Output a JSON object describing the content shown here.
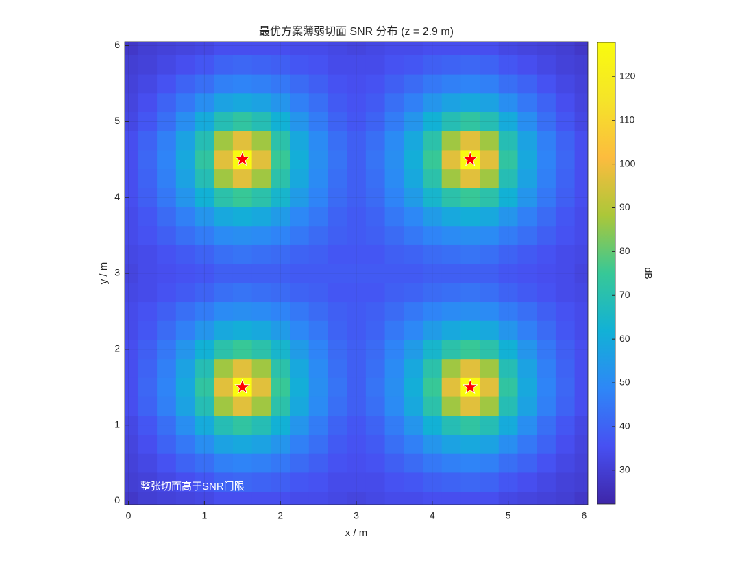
{
  "chart_data": {
    "type": "heatmap",
    "title": "最优方案薄弱切面 SNR 分布  (z = 2.9 m)",
    "x_label": "x / m",
    "y_label": "y / m",
    "colorbar_label": "dB",
    "annotation": "整张切面高于SNR门限",
    "colormap": "parula",
    "grid": true,
    "x": [
      0,
      0.25,
      0.5,
      0.75,
      1,
      1.25,
      1.5,
      1.75,
      2,
      2.25,
      2.5,
      2.75,
      3,
      3.25,
      3.5,
      3.75,
      4,
      4.25,
      4.5,
      4.75,
      5,
      5.25,
      5.5,
      5.75,
      6
    ],
    "y": [
      0,
      0.25,
      0.5,
      0.75,
      1,
      1.25,
      1.5,
      1.75,
      2,
      2.25,
      2.5,
      2.75,
      3,
      3.25,
      3.5,
      3.75,
      4,
      4.25,
      4.5,
      4.75,
      5,
      5.25,
      5.5,
      5.75,
      6
    ],
    "z": [
      [
        28,
        30,
        31,
        32,
        33,
        35,
        35,
        35,
        35,
        34,
        34,
        33,
        32,
        33,
        34,
        34,
        35,
        35,
        35,
        35,
        33,
        32,
        31,
        30,
        28
      ],
      [
        30,
        31,
        33,
        35,
        37,
        40,
        41,
        40,
        39,
        37,
        36,
        34,
        34,
        34,
        36,
        37,
        39,
        40,
        41,
        40,
        37,
        35,
        33,
        31,
        30
      ],
      [
        31,
        33,
        36,
        40,
        43,
        47,
        48,
        47,
        45,
        42,
        39,
        36,
        35,
        36,
        39,
        42,
        45,
        47,
        48,
        47,
        43,
        40,
        36,
        33,
        31
      ],
      [
        32,
        35,
        40,
        45,
        51,
        57,
        59,
        57,
        53,
        47,
        43,
        38,
        36,
        38,
        43,
        47,
        53,
        57,
        59,
        57,
        51,
        45,
        40,
        35,
        32
      ],
      [
        33,
        37,
        43,
        51,
        60,
        69,
        73,
        69,
        62,
        53,
        46,
        40,
        37,
        40,
        46,
        53,
        62,
        69,
        73,
        69,
        60,
        51,
        43,
        37,
        33
      ],
      [
        35,
        40,
        47,
        57,
        69,
        87,
        97,
        87,
        71,
        59,
        50,
        43,
        39,
        43,
        50,
        59,
        71,
        87,
        97,
        87,
        69,
        57,
        47,
        40,
        35
      ],
      [
        35,
        41,
        48,
        59,
        73,
        97,
        127,
        97,
        75,
        61,
        51,
        44,
        39,
        44,
        51,
        61,
        75,
        97,
        127,
        97,
        73,
        59,
        48,
        41,
        35
      ],
      [
        35,
        40,
        47,
        57,
        69,
        87,
        97,
        87,
        71,
        59,
        50,
        43,
        39,
        43,
        50,
        59,
        71,
        87,
        97,
        87,
        69,
        57,
        47,
        40,
        35
      ],
      [
        35,
        39,
        45,
        53,
        62,
        71,
        75,
        71,
        64,
        55,
        48,
        42,
        39,
        42,
        48,
        55,
        64,
        71,
        75,
        71,
        62,
        53,
        45,
        39,
        35
      ],
      [
        34,
        37,
        42,
        47,
        53,
        59,
        61,
        59,
        55,
        49,
        45,
        40,
        38,
        40,
        45,
        49,
        55,
        59,
        61,
        59,
        53,
        47,
        42,
        37,
        34
      ],
      [
        34,
        36,
        39,
        43,
        46,
        50,
        51,
        50,
        48,
        45,
        42,
        39,
        38,
        39,
        42,
        45,
        48,
        50,
        51,
        50,
        46,
        43,
        39,
        36,
        34
      ],
      [
        33,
        34,
        36,
        38,
        40,
        43,
        44,
        43,
        42,
        40,
        39,
        37,
        37,
        37,
        39,
        40,
        42,
        43,
        44,
        43,
        40,
        38,
        36,
        34,
        33
      ],
      [
        32,
        34,
        35,
        36,
        37,
        39,
        39,
        39,
        39,
        38,
        38,
        38,
        38,
        38,
        38,
        38,
        39,
        39,
        39,
        39,
        37,
        36,
        35,
        34,
        32
      ],
      [
        33,
        34,
        36,
        38,
        40,
        43,
        44,
        43,
        42,
        40,
        39,
        37,
        37,
        37,
        39,
        40,
        42,
        43,
        44,
        43,
        40,
        38,
        36,
        34,
        33
      ],
      [
        34,
        36,
        39,
        43,
        46,
        50,
        51,
        50,
        48,
        45,
        42,
        39,
        38,
        39,
        42,
        45,
        48,
        50,
        51,
        50,
        46,
        43,
        39,
        36,
        34
      ],
      [
        34,
        37,
        42,
        47,
        53,
        59,
        61,
        59,
        55,
        49,
        45,
        40,
        38,
        40,
        45,
        49,
        55,
        59,
        61,
        59,
        53,
        47,
        42,
        37,
        34
      ],
      [
        35,
        39,
        45,
        53,
        62,
        71,
        75,
        71,
        64,
        55,
        48,
        42,
        39,
        42,
        48,
        55,
        64,
        71,
        75,
        71,
        62,
        53,
        45,
        39,
        35
      ],
      [
        35,
        40,
        47,
        57,
        69,
        87,
        97,
        87,
        71,
        59,
        50,
        43,
        39,
        43,
        50,
        59,
        71,
        87,
        97,
        87,
        69,
        57,
        47,
        40,
        35
      ],
      [
        35,
        41,
        48,
        59,
        73,
        97,
        127,
        97,
        75,
        61,
        51,
        44,
        39,
        44,
        51,
        61,
        75,
        97,
        127,
        97,
        73,
        59,
        48,
        41,
        35
      ],
      [
        35,
        40,
        47,
        57,
        69,
        87,
        97,
        87,
        71,
        59,
        50,
        43,
        39,
        43,
        50,
        59,
        71,
        87,
        97,
        87,
        69,
        57,
        47,
        40,
        35
      ],
      [
        33,
        37,
        43,
        51,
        60,
        69,
        73,
        69,
        62,
        53,
        46,
        40,
        37,
        40,
        46,
        53,
        62,
        69,
        73,
        69,
        60,
        51,
        43,
        37,
        33
      ],
      [
        32,
        35,
        40,
        45,
        51,
        57,
        59,
        57,
        53,
        47,
        43,
        38,
        36,
        38,
        43,
        47,
        53,
        57,
        59,
        57,
        51,
        45,
        40,
        35,
        32
      ],
      [
        31,
        33,
        36,
        40,
        43,
        47,
        48,
        47,
        45,
        42,
        39,
        36,
        35,
        36,
        39,
        42,
        45,
        47,
        48,
        47,
        43,
        40,
        36,
        33,
        31
      ],
      [
        30,
        31,
        33,
        35,
        37,
        40,
        41,
        40,
        39,
        37,
        36,
        34,
        34,
        34,
        36,
        37,
        39,
        40,
        41,
        40,
        37,
        35,
        33,
        31,
        30
      ],
      [
        28,
        30,
        31,
        32,
        33,
        35,
        35,
        35,
        35,
        34,
        34,
        33,
        32,
        33,
        34,
        34,
        35,
        35,
        35,
        35,
        33,
        32,
        31,
        30,
        28
      ]
    ],
    "markers": {
      "color": "#ff0000",
      "x": [
        1.5,
        4.5,
        1.5,
        4.5
      ],
      "y": [
        1.5,
        1.5,
        4.5,
        4.5
      ]
    },
    "xlim": [
      -0.05,
      6.05
    ],
    "ylim": [
      -0.05,
      6.05
    ],
    "xticks": [
      0,
      1,
      2,
      3,
      4,
      5,
      6
    ],
    "yticks": [
      0,
      1,
      2,
      3,
      4,
      5,
      6
    ],
    "clim": [
      22.3,
      127.8
    ],
    "cticks": [
      30,
      40,
      50,
      60,
      70,
      80,
      90,
      100,
      110,
      120
    ]
  }
}
